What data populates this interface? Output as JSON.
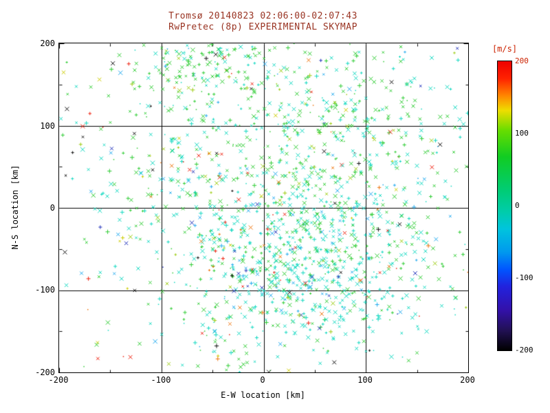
{
  "chart_data": {
    "type": "scatter",
    "title_line1": "Tromsø 20140823 02:06:00-02:07:43",
    "title_line2": "RwPretec (8p) EXPERIMENTAL SKYMAP",
    "xlabel": "E-W location [km]",
    "ylabel": "N-S location [km]",
    "xlim": [
      -200,
      200
    ],
    "ylim": [
      -200,
      200
    ],
    "x_tick_labels": [
      "-200",
      "-100",
      "0",
      "100",
      "200"
    ],
    "y_tick_labels": [
      "200",
      "100",
      "0",
      "-100",
      "-200"
    ],
    "grid": true,
    "gridline_values": [
      -100,
      0,
      100
    ],
    "minor_tick_step": 50,
    "legend": "none",
    "colorbar": {
      "unit_label": "[m/s]",
      "min": -200,
      "max": 200,
      "tick_labels": [
        "200",
        "100",
        "0",
        "-100",
        "-200"
      ],
      "gradient_stops": [
        [
          0,
          "#ee0000"
        ],
        [
          0.06,
          "#ff2200"
        ],
        [
          0.12,
          "#ff8800"
        ],
        [
          0.17,
          "#eedd00"
        ],
        [
          0.24,
          "#66dd00"
        ],
        [
          0.33,
          "#11cc22"
        ],
        [
          0.45,
          "#00cc77"
        ],
        [
          0.52,
          "#00ccaa"
        ],
        [
          0.58,
          "#00c4dd"
        ],
        [
          0.66,
          "#0099ee"
        ],
        [
          0.72,
          "#0055ff"
        ],
        [
          0.78,
          "#2222dd"
        ],
        [
          0.86,
          "#3311aa"
        ],
        [
          0.93,
          "#221155"
        ],
        [
          1,
          "#000000"
        ]
      ]
    },
    "colors": {
      "title": "#993322",
      "axis": "#000000",
      "unit_label": "#cc2200",
      "background": "#ffffff"
    },
    "point_colors": {
      "teal": "#10d8c0",
      "green": "#2ecc33",
      "cyan_blue": "#22aaee",
      "yellow_green": "#9ccc11",
      "yellow": "#cccc00",
      "red": "#ee2211",
      "orange": "#ee7711",
      "black": "#111111",
      "navy": "#2233bb"
    },
    "point_cloud": {
      "description": "Dense skymap of ~2000 meteor echo markers (x and + symbols), velocity color-coded: mostly teal (slightly negative m/s) and green (near 0 to +50 m/s), sparse red/orange/blue/black outliers, densest south-center and a tight green clump at the top edge near (-60,185).",
      "seed": 20140823,
      "marker_weights": {
        "x": 0.62,
        "plus": 0.26,
        "dot": 0.12
      },
      "palettes": {
        "cyan_heavy": [
          [
            "teal",
            0.62
          ],
          [
            "green",
            0.24
          ],
          [
            "cyan_blue",
            0.08
          ],
          [
            "yellow_green",
            0.02
          ],
          [
            "red",
            0.01
          ],
          [
            "orange",
            0.01
          ],
          [
            "black",
            0.01
          ],
          [
            "navy",
            0.01
          ]
        ],
        "cyan_green": [
          [
            "teal",
            0.45
          ],
          [
            "green",
            0.38
          ],
          [
            "cyan_blue",
            0.06
          ],
          [
            "yellow_green",
            0.03
          ],
          [
            "red",
            0.02
          ],
          [
            "orange",
            0.015
          ],
          [
            "black",
            0.02
          ],
          [
            "navy",
            0.015
          ],
          [
            "yellow",
            0.01
          ]
        ],
        "green_heavy": [
          [
            "green",
            0.62
          ],
          [
            "teal",
            0.28
          ],
          [
            "yellow_green",
            0.04
          ],
          [
            "cyan_blue",
            0.02
          ],
          [
            "red",
            0.015
          ],
          [
            "orange",
            0.01
          ],
          [
            "black",
            0.01
          ],
          [
            "navy",
            0.005
          ]
        ],
        "sparse_mixed": [
          [
            "teal",
            0.3
          ],
          [
            "green",
            0.22
          ],
          [
            "red",
            0.13
          ],
          [
            "orange",
            0.07
          ],
          [
            "black",
            0.09
          ],
          [
            "navy",
            0.07
          ],
          [
            "cyan_blue",
            0.06
          ],
          [
            "yellow",
            0.06
          ]
        ]
      },
      "clusters": [
        {
          "cx": 35,
          "cy": -75,
          "sx": 60,
          "sy": 50,
          "count": 550,
          "palette": "cyan_heavy"
        },
        {
          "cx": 20,
          "cy": -10,
          "sx": 95,
          "sy": 75,
          "count": 500,
          "palette": "cyan_green"
        },
        {
          "cx": 30,
          "cy": 110,
          "sx": 80,
          "sy": 55,
          "count": 330,
          "palette": "green_heavy"
        },
        {
          "cx": -60,
          "cy": 185,
          "sx": 38,
          "sy": 28,
          "count": 200,
          "palette": "green_heavy"
        },
        {
          "cx": 130,
          "cy": 30,
          "sx": 55,
          "sy": 90,
          "count": 130,
          "palette": "cyan_green"
        },
        {
          "cx": -10,
          "cy": 0,
          "sx": 175,
          "sy": 165,
          "count": 260,
          "palette": "sparse_mixed"
        },
        {
          "cx": -150,
          "cy": 60,
          "sx": 40,
          "sy": 90,
          "count": 40,
          "palette": "sparse_mixed"
        },
        {
          "cx": -40,
          "cy": -170,
          "sx": 100,
          "sy": 30,
          "count": 50,
          "palette": "cyan_green"
        }
      ]
    }
  }
}
